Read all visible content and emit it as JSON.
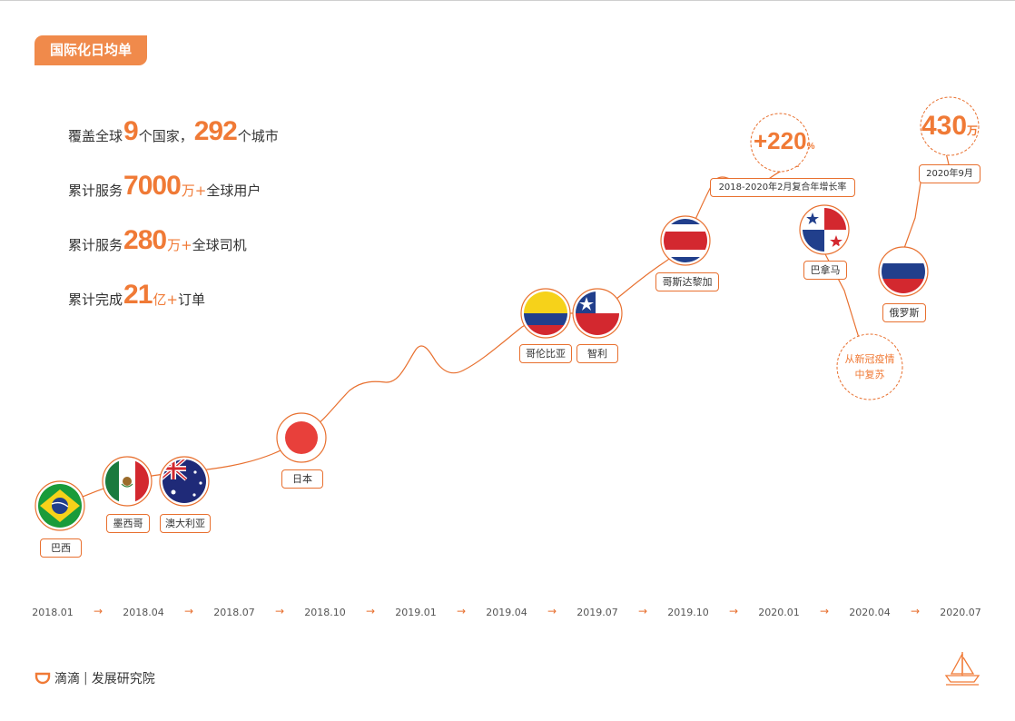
{
  "section_tag": "国际化日均单",
  "stats": [
    {
      "pre": "覆盖全球",
      "num": "9",
      "mid": "个国家，",
      "num2": "292",
      "post": "个城市"
    },
    {
      "pre": "累计服务",
      "num": "7000",
      "unit": "万+",
      "post": "全球用户"
    },
    {
      "pre": "累计服务",
      "num": "280",
      "unit": "万+",
      "post": "全球司机"
    },
    {
      "pre": "累计完成",
      "num": "21",
      "unit": "亿+",
      "post": "订单"
    }
  ],
  "chart_data": {
    "type": "line",
    "x_ticks": [
      "2018.01",
      "2018.04",
      "2018.07",
      "2018.10",
      "2019.01",
      "2019.04",
      "2019.07",
      "2019.10",
      "2020.01",
      "2020.04",
      "2020.07"
    ],
    "milestones": [
      {
        "label": "巴西",
        "flag": "brazil-flag",
        "date": "2018.01"
      },
      {
        "label": "墨西哥",
        "flag": "mexico-flag",
        "date": "2018.04"
      },
      {
        "label": "澳大利亚",
        "flag": "australia-flag",
        "date": "2018.06"
      },
      {
        "label": "日本",
        "flag": "japan-flag",
        "date": "2018.10"
      },
      {
        "label": "哥伦比亚",
        "flag": "colombia-flag",
        "date": "2019.06"
      },
      {
        "label": "智利",
        "flag": "chile-flag",
        "date": "2019.07"
      },
      {
        "label": "哥斯达黎加",
        "flag": "costa-rica-flag",
        "date": "2019.10"
      },
      {
        "label": "巴拿马",
        "flag": "panama-flag",
        "date": "2020.02"
      },
      {
        "label": "俄罗斯",
        "flag": "russia-flag",
        "date": "2020.05"
      }
    ],
    "annotations": {
      "growth_value": "+220",
      "growth_unit": "%",
      "growth_label": "2018-2020年2月复合年增长率",
      "recovery": [
        "从新冠疫情",
        "中复苏"
      ],
      "final_value": "430",
      "final_unit": "万",
      "final_date": "2020年9月"
    },
    "colors": {
      "accent": "#f07a36",
      "line": "#e8702f"
    }
  },
  "footer": {
    "brand": "滴滴",
    "divider": "|",
    "dept": "发展研究院"
  }
}
